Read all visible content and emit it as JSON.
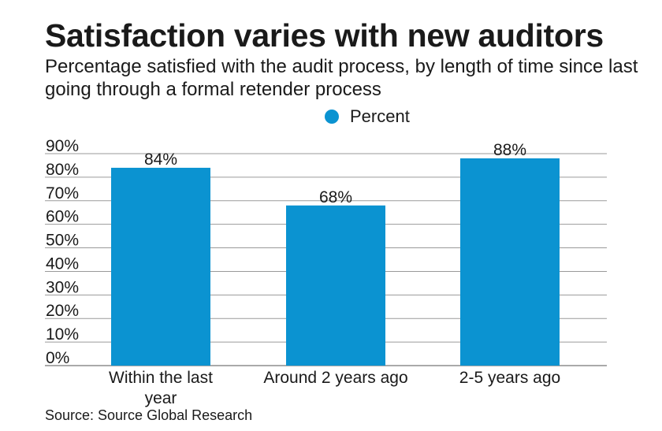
{
  "title": "Satisfaction varies with new auditors",
  "subtitle": "Percentage satisfied with the audit process, by length of time since last going through a formal retender process",
  "source": "Source: Source Global Research",
  "legend": {
    "label": "Percent",
    "color": "#0b93d1"
  },
  "chart_data": {
    "type": "bar",
    "title": "Satisfaction varies with new auditors",
    "subtitle": "Percentage satisfied with the audit process, by length of time since last going through a formal retender process",
    "categories": [
      "Within the last year",
      "Around 2 years ago",
      "2-5 years ago"
    ],
    "series": [
      {
        "name": "Percent",
        "values": [
          84,
          68,
          88
        ],
        "data_labels": [
          "84%",
          "68%",
          "88%"
        ],
        "color": "#0b93d1"
      }
    ],
    "ylim": [
      0,
      90
    ],
    "yticks": [
      0,
      10,
      20,
      30,
      40,
      50,
      60,
      70,
      80,
      90
    ],
    "ytick_labels": [
      "0%",
      "10%",
      "20%",
      "30%",
      "40%",
      "50%",
      "60%",
      "70%",
      "80%",
      "90%"
    ],
    "xlabel": "",
    "ylabel": "",
    "grid": true,
    "legend_position": "top"
  }
}
